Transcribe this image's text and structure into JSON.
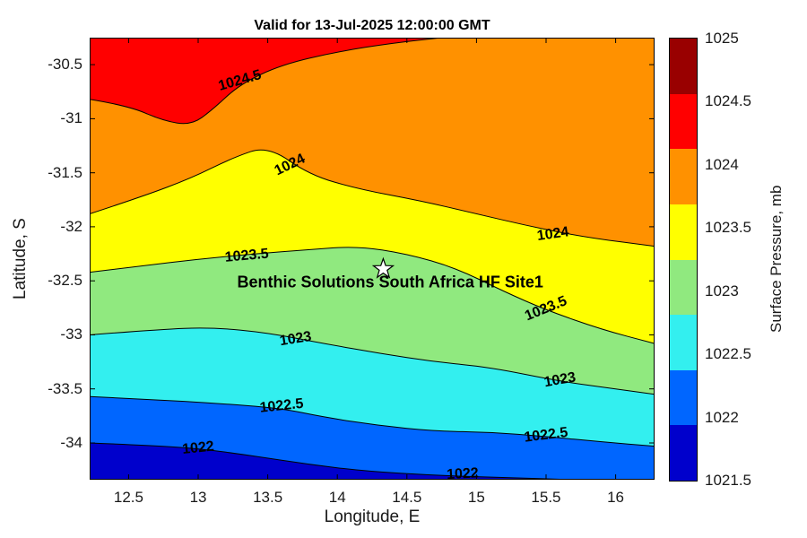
{
  "figure": {
    "title": "Valid for 13-Jul-2025 12:00:00 GMT",
    "xlabel": "Longitude, E",
    "ylabel": "Latitude, S",
    "colorbar_label": "Surface Pressure, mb"
  },
  "chart_data": {
    "type": "contour",
    "title": "Valid for 13-Jul-2025 12:00:00 GMT",
    "xlabel": "Longitude, E",
    "ylabel": "Latitude, S",
    "colorbar_label": "Surface Pressure, mb",
    "units": "mb",
    "x_range": [
      12.22,
      16.28
    ],
    "y_range": [
      -34.34,
      -30.25
    ],
    "x_ticks": [
      12.5,
      13,
      13.5,
      14,
      14.5,
      15,
      15.5,
      16
    ],
    "x_tick_labels": [
      "12.5",
      "13",
      "13.5",
      "14",
      "14.5",
      "15",
      "15.5",
      "16"
    ],
    "y_ticks": [
      -30.5,
      -31,
      -31.5,
      -32,
      -32.5,
      -33,
      -33.5,
      -34
    ],
    "y_tick_labels": [
      "-30.5",
      "-31",
      "-31.5",
      "-32",
      "-32.5",
      "-33",
      "-33.5",
      "-34"
    ],
    "base_color": "#0000CC",
    "contours": [
      {
        "level": 1022,
        "level_label": "1022",
        "color_above": "#0066FF",
        "end_edge": "bottom",
        "points": [
          [
            12.22,
            -34.0
          ],
          [
            12.6,
            -34.02
          ],
          [
            13.0,
            -34.05
          ],
          [
            13.4,
            -34.12
          ],
          [
            13.8,
            -34.2
          ],
          [
            14.2,
            -34.26
          ],
          [
            14.7,
            -34.3
          ],
          [
            15.2,
            -34.32
          ],
          [
            15.7,
            -34.34
          ]
        ],
        "labels": [
          {
            "x": 13.0,
            "y": -34.05,
            "r": -6
          },
          {
            "x": 14.9,
            "y": -34.29,
            "r": -3
          }
        ]
      },
      {
        "level": 1022.5,
        "level_label": "1022.5",
        "color_above": "#33EFEF",
        "end_edge": "right",
        "points": [
          [
            12.22,
            -33.57
          ],
          [
            12.7,
            -33.6
          ],
          [
            13.1,
            -33.63
          ],
          [
            13.6,
            -33.68
          ],
          [
            13.9,
            -33.76
          ],
          [
            14.3,
            -33.84
          ],
          [
            14.7,
            -33.89
          ],
          [
            15.1,
            -33.9
          ],
          [
            15.5,
            -33.94
          ],
          [
            15.9,
            -33.99
          ],
          [
            16.28,
            -34.03
          ]
        ],
        "labels": [
          {
            "x": 13.6,
            "y": -33.66,
            "r": -6
          },
          {
            "x": 15.5,
            "y": -33.93,
            "r": -7
          }
        ]
      },
      {
        "level": 1023,
        "level_label": "1023",
        "color_above": "#90E97F",
        "end_edge": "right",
        "points": [
          [
            12.22,
            -33.0
          ],
          [
            12.7,
            -32.95
          ],
          [
            13.1,
            -32.93
          ],
          [
            13.5,
            -32.98
          ],
          [
            13.9,
            -33.08
          ],
          [
            14.3,
            -33.17
          ],
          [
            14.7,
            -33.25
          ],
          [
            15.1,
            -33.3
          ],
          [
            15.6,
            -33.43
          ],
          [
            16.0,
            -33.5
          ],
          [
            16.28,
            -33.55
          ]
        ],
        "labels": [
          {
            "x": 13.7,
            "y": -33.04,
            "r": -9
          },
          {
            "x": 15.6,
            "y": -33.42,
            "r": -10
          }
        ]
      },
      {
        "level": 1023.5,
        "level_label": "1023.5",
        "color_above": "#FFFF00",
        "end_edge": "right",
        "points": [
          [
            12.22,
            -32.42
          ],
          [
            12.6,
            -32.36
          ],
          [
            13.0,
            -32.3
          ],
          [
            13.4,
            -32.25
          ],
          [
            13.8,
            -32.21
          ],
          [
            14.15,
            -32.18
          ],
          [
            14.5,
            -32.25
          ],
          [
            14.85,
            -32.38
          ],
          [
            15.2,
            -32.6
          ],
          [
            15.5,
            -32.77
          ],
          [
            15.9,
            -32.95
          ],
          [
            16.28,
            -33.08
          ]
        ],
        "labels": [
          {
            "x": 13.35,
            "y": -32.27,
            "r": -5
          },
          {
            "x": 15.5,
            "y": -32.76,
            "r": -22
          }
        ]
      },
      {
        "level": 1024,
        "level_label": "1024",
        "color_above": "#FF9100",
        "end_edge": "right",
        "points": [
          [
            12.22,
            -31.88
          ],
          [
            12.6,
            -31.72
          ],
          [
            12.95,
            -31.55
          ],
          [
            13.25,
            -31.36
          ],
          [
            13.5,
            -31.25
          ],
          [
            13.8,
            -31.52
          ],
          [
            14.15,
            -31.65
          ],
          [
            14.6,
            -31.76
          ],
          [
            15.0,
            -31.88
          ],
          [
            15.4,
            -32.0
          ],
          [
            15.8,
            -32.1
          ],
          [
            16.28,
            -32.18
          ]
        ],
        "labels": [
          {
            "x": 13.66,
            "y": -31.43,
            "r": -26
          },
          {
            "x": 15.55,
            "y": -32.07,
            "r": -8
          }
        ]
      },
      {
        "level": 1024.5,
        "level_label": "1024.5",
        "color_above": "#FF0000",
        "end_edge": "top",
        "points": [
          [
            12.22,
            -30.82
          ],
          [
            12.5,
            -30.88
          ],
          [
            12.75,
            -31.02
          ],
          [
            12.95,
            -31.06
          ],
          [
            13.1,
            -30.92
          ],
          [
            13.3,
            -30.68
          ],
          [
            13.6,
            -30.5
          ],
          [
            14.0,
            -30.38
          ],
          [
            14.4,
            -30.3
          ],
          [
            14.75,
            -30.25
          ]
        ],
        "labels": [
          {
            "x": 13.3,
            "y": -30.65,
            "r": -16
          }
        ]
      }
    ],
    "star": {
      "x": 14.33,
      "y": -32.39
    },
    "site_label": {
      "text": "Benthic Solutions South Africa HF Site1",
      "x": 14.38,
      "y": -32.56
    },
    "colorbar": {
      "tick_labels": [
        "1025",
        "1024.5",
        "1024",
        "1023.5",
        "1023",
        "1022.5",
        "1022",
        "1021.5"
      ],
      "colors_top_to_bottom": [
        "#990000",
        "#FF0000",
        "#FF9100",
        "#FFFF00",
        "#90E97F",
        "#33EFEF",
        "#0066FF",
        "#0000CC"
      ]
    }
  }
}
